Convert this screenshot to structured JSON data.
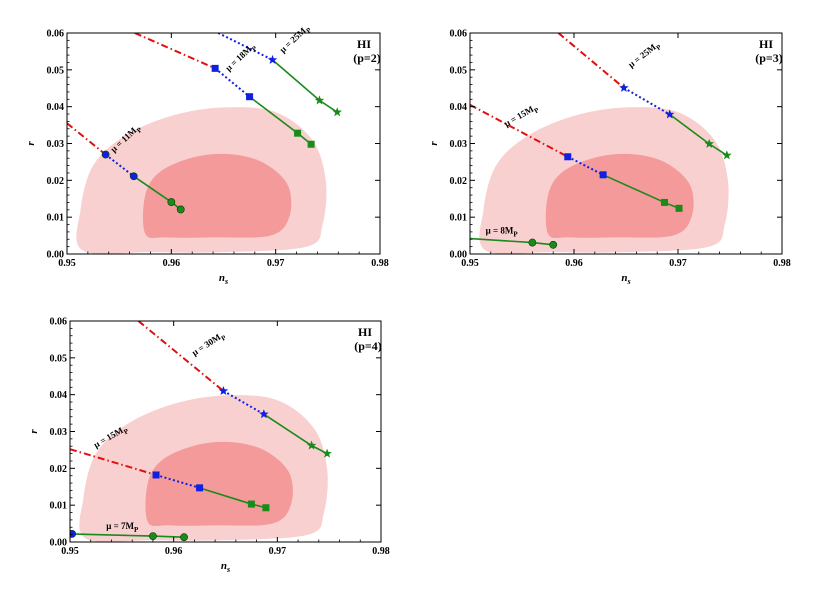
{
  "chart_data": [
    {
      "type": "line",
      "title": "HI",
      "subtitle": "(p=2)",
      "xlabel": "n_s",
      "ylabel": "r",
      "xlim": [
        0.95,
        0.98
      ],
      "ylim": [
        0,
        0.06
      ],
      "xticks": [
        "0.95",
        "0.96",
        "0.97",
        "0.98"
      ],
      "yticks": [
        "0.00",
        "0.01",
        "0.02",
        "0.03",
        "0.04",
        "0.05",
        "0.06"
      ],
      "contours": [
        {
          "level": "outer",
          "color": "#f9d0d0",
          "points": [
            [
              0.9515,
              0.001
            ],
            [
              0.9513,
              0.012
            ],
            [
              0.9525,
              0.024
            ],
            [
              0.9555,
              0.032
            ],
            [
              0.96,
              0.0375
            ],
            [
              0.965,
              0.0398
            ],
            [
              0.97,
              0.0385
            ],
            [
              0.9735,
              0.031
            ],
            [
              0.9748,
              0.02
            ],
            [
              0.9745,
              0.008
            ],
            [
              0.973,
              0.002
            ],
            [
              0.965,
              0.0005
            ],
            [
              0.958,
              0.0005
            ]
          ]
        },
        {
          "level": "inner",
          "color": "#f49a9a",
          "points": [
            [
              0.9575,
              0.0055
            ],
            [
              0.9575,
              0.016
            ],
            [
              0.959,
              0.0225
            ],
            [
              0.9625,
              0.0265
            ],
            [
              0.966,
              0.027
            ],
            [
              0.969,
              0.0245
            ],
            [
              0.9712,
              0.0185
            ],
            [
              0.9713,
              0.01
            ],
            [
              0.9695,
              0.005
            ],
            [
              0.964,
              0.0045
            ],
            [
              0.9595,
              0.0045
            ]
          ]
        }
      ],
      "series": [
        {
          "style": "dashdot",
          "color": "#e01010",
          "points": [
            [
              0.95,
              0.0355
            ],
            [
              0.9537,
              0.027
            ]
          ]
        },
        {
          "style": "dotted",
          "color": "#1020e0",
          "points": [
            [
              0.9537,
              0.027
            ],
            [
              0.9564,
              0.0211
            ]
          ]
        },
        {
          "style": "solid",
          "color": "#1a8a1a",
          "points": [
            [
              0.9564,
              0.0211
            ],
            [
              0.96,
              0.0141
            ],
            [
              0.9609,
              0.0121
            ]
          ]
        },
        {
          "style": "dashdot",
          "color": "#e01010",
          "points": [
            [
              0.9565,
              0.06
            ],
            [
              0.9642,
              0.0504
            ]
          ]
        },
        {
          "style": "dotted",
          "color": "#1020e0",
          "points": [
            [
              0.9642,
              0.0504
            ],
            [
              0.9675,
              0.0427
            ]
          ]
        },
        {
          "style": "solid",
          "color": "#1a8a1a",
          "points": [
            [
              0.9675,
              0.0427
            ],
            [
              0.9721,
              0.0328
            ],
            [
              0.9734,
              0.0298
            ]
          ]
        },
        {
          "style": "dotted",
          "color": "#1020e0",
          "points": [
            [
              0.9645,
              0.06
            ],
            [
              0.9697,
              0.0527
            ]
          ]
        },
        {
          "style": "solid",
          "color": "#1a8a1a",
          "points": [
            [
              0.9697,
              0.0527
            ],
            [
              0.9742,
              0.0417
            ],
            [
              0.9759,
              0.0385
            ]
          ]
        }
      ],
      "markers": [
        {
          "shape": "circle",
          "color": "#1020e0",
          "x": 0.9537,
          "y": 0.027
        },
        {
          "shape": "circle",
          "color": "#1020e0",
          "x": 0.9564,
          "y": 0.0211
        },
        {
          "shape": "circle",
          "color": "#1a8a1a",
          "x": 0.96,
          "y": 0.0141
        },
        {
          "shape": "circle",
          "color": "#1a8a1a",
          "x": 0.9609,
          "y": 0.0121
        },
        {
          "shape": "square",
          "color": "#1020e0",
          "x": 0.9642,
          "y": 0.0504
        },
        {
          "shape": "square",
          "color": "#1020e0",
          "x": 0.9675,
          "y": 0.0427
        },
        {
          "shape": "square",
          "color": "#1a8a1a",
          "x": 0.9721,
          "y": 0.0328
        },
        {
          "shape": "square",
          "color": "#1a8a1a",
          "x": 0.9734,
          "y": 0.0298
        },
        {
          "shape": "star",
          "color": "#1020e0",
          "x": 0.9697,
          "y": 0.0527
        },
        {
          "shape": "star",
          "color": "#1a8a1a",
          "x": 0.9742,
          "y": 0.0417
        },
        {
          "shape": "star",
          "color": "#1a8a1a",
          "x": 0.9759,
          "y": 0.0385
        }
      ],
      "annotations": [
        {
          "text": "μ = 11M",
          "sub": "P",
          "x": 0.9545,
          "y": 0.0275,
          "rotate": -43
        },
        {
          "text": "μ = 18M",
          "sub": "P",
          "x": 0.9655,
          "y": 0.0495,
          "rotate": -43
        },
        {
          "text": "μ = 25M",
          "sub": "P",
          "x": 0.9707,
          "y": 0.0545,
          "rotate": -43
        }
      ]
    },
    {
      "type": "line",
      "title": "HI",
      "subtitle": "(p=3)",
      "xlabel": "n_s",
      "ylabel": "r",
      "xlim": [
        0.95,
        0.98
      ],
      "ylim": [
        0,
        0.06
      ],
      "xticks": [
        "0.95",
        "0.96",
        "0.97",
        "0.98"
      ],
      "yticks": [
        "0.00",
        "0.01",
        "0.02",
        "0.03",
        "0.04",
        "0.05",
        "0.06"
      ],
      "contours": [
        {
          "level": "outer",
          "color": "#f9d0d0",
          "points": [
            [
              0.9515,
              0.001
            ],
            [
              0.9513,
              0.012
            ],
            [
              0.9525,
              0.024
            ],
            [
              0.9555,
              0.032
            ],
            [
              0.96,
              0.0375
            ],
            [
              0.965,
              0.0398
            ],
            [
              0.97,
              0.0385
            ],
            [
              0.9735,
              0.031
            ],
            [
              0.9748,
              0.02
            ],
            [
              0.9745,
              0.008
            ],
            [
              0.973,
              0.002
            ],
            [
              0.965,
              0.0005
            ],
            [
              0.958,
              0.0005
            ]
          ]
        },
        {
          "level": "inner",
          "color": "#f49a9a",
          "points": [
            [
              0.9575,
              0.0055
            ],
            [
              0.9575,
              0.016
            ],
            [
              0.959,
              0.0225
            ],
            [
              0.9625,
              0.0265
            ],
            [
              0.966,
              0.027
            ],
            [
              0.969,
              0.0245
            ],
            [
              0.9712,
              0.0185
            ],
            [
              0.9713,
              0.01
            ],
            [
              0.9695,
              0.005
            ],
            [
              0.964,
              0.0045
            ],
            [
              0.9595,
              0.0045
            ]
          ]
        }
      ],
      "series": [
        {
          "style": "dashdot",
          "color": "#e01010",
          "points": [
            [
              0.95,
              0.0405
            ],
            [
              0.9594,
              0.0264
            ]
          ]
        },
        {
          "style": "dotted",
          "color": "#1020e0",
          "points": [
            [
              0.9594,
              0.0264
            ],
            [
              0.9628,
              0.0215
            ]
          ]
        },
        {
          "style": "solid",
          "color": "#1a8a1a",
          "points": [
            [
              0.9628,
              0.0215
            ],
            [
              0.9687,
              0.014
            ],
            [
              0.9701,
              0.0124
            ]
          ]
        },
        {
          "style": "dashdot",
          "color": "#e01010",
          "points": [
            [
              0.9585,
              0.06
            ],
            [
              0.9648,
              0.0451
            ]
          ]
        },
        {
          "style": "dotted",
          "color": "#1020e0",
          "points": [
            [
              0.9648,
              0.0451
            ],
            [
              0.9692,
              0.0379
            ]
          ]
        },
        {
          "style": "solid",
          "color": "#1a8a1a",
          "points": [
            [
              0.9692,
              0.0379
            ],
            [
              0.973,
              0.0299
            ],
            [
              0.9747,
              0.0268
            ]
          ]
        },
        {
          "style": "solid",
          "color": "#1a8a1a",
          "points": [
            [
              0.95,
              0.0042
            ],
            [
              0.956,
              0.0031
            ],
            [
              0.958,
              0.0025
            ]
          ]
        }
      ],
      "markers": [
        {
          "shape": "square",
          "color": "#1020e0",
          "x": 0.9594,
          "y": 0.0264
        },
        {
          "shape": "square",
          "color": "#1020e0",
          "x": 0.9628,
          "y": 0.0215
        },
        {
          "shape": "square",
          "color": "#1a8a1a",
          "x": 0.9687,
          "y": 0.014
        },
        {
          "shape": "square",
          "color": "#1a8a1a",
          "x": 0.9701,
          "y": 0.0124
        },
        {
          "shape": "star",
          "color": "#1020e0",
          "x": 0.9648,
          "y": 0.0451
        },
        {
          "shape": "star",
          "color": "#1020e0",
          "x": 0.9692,
          "y": 0.0379
        },
        {
          "shape": "star",
          "color": "#1a8a1a",
          "x": 0.973,
          "y": 0.0299
        },
        {
          "shape": "star",
          "color": "#1a8a1a",
          "x": 0.9747,
          "y": 0.0268
        },
        {
          "shape": "circle",
          "color": "#1a8a1a",
          "x": 0.956,
          "y": 0.0031
        },
        {
          "shape": "circle",
          "color": "#1a8a1a",
          "x": 0.958,
          "y": 0.0025
        }
      ],
      "annotations": [
        {
          "text": "μ = 25M",
          "sub": "P",
          "x": 0.9655,
          "y": 0.0505,
          "rotate": -38
        },
        {
          "text": "μ = 15M",
          "sub": "P",
          "x": 0.9535,
          "y": 0.0345,
          "rotate": -30
        },
        {
          "text": "μ = 8M",
          "sub": "P",
          "x": 0.9515,
          "y": 0.0055,
          "rotate": 0
        }
      ]
    },
    {
      "type": "line",
      "title": "HI",
      "subtitle": "(p=4)",
      "xlabel": "n_s",
      "ylabel": "r",
      "xlim": [
        0.95,
        0.98
      ],
      "ylim": [
        0,
        0.06
      ],
      "xticks": [
        "0.95",
        "0.96",
        "0.97",
        "0.98"
      ],
      "yticks": [
        "0.00",
        "0.01",
        "0.02",
        "0.03",
        "0.04",
        "0.05",
        "0.06"
      ],
      "contours": [
        {
          "level": "outer",
          "color": "#f9d0d0",
          "points": [
            [
              0.9515,
              0.001
            ],
            [
              0.9513,
              0.012
            ],
            [
              0.9525,
              0.024
            ],
            [
              0.9555,
              0.032
            ],
            [
              0.96,
              0.0375
            ],
            [
              0.965,
              0.0398
            ],
            [
              0.97,
              0.0385
            ],
            [
              0.9735,
              0.031
            ],
            [
              0.9748,
              0.02
            ],
            [
              0.9745,
              0.008
            ],
            [
              0.973,
              0.002
            ],
            [
              0.965,
              0.0005
            ],
            [
              0.958,
              0.0005
            ]
          ]
        },
        {
          "level": "inner",
          "color": "#f49a9a",
          "points": [
            [
              0.9575,
              0.0055
            ],
            [
              0.9575,
              0.016
            ],
            [
              0.959,
              0.0225
            ],
            [
              0.9625,
              0.0265
            ],
            [
              0.966,
              0.027
            ],
            [
              0.969,
              0.0245
            ],
            [
              0.9712,
              0.0185
            ],
            [
              0.9713,
              0.01
            ],
            [
              0.9695,
              0.005
            ],
            [
              0.964,
              0.0045
            ],
            [
              0.9595,
              0.0045
            ]
          ]
        }
      ],
      "series": [
        {
          "style": "dashdot",
          "color": "#e01010",
          "points": [
            [
              0.9566,
              0.06
            ],
            [
              0.9648,
              0.041
            ]
          ]
        },
        {
          "style": "dotted",
          "color": "#1020e0",
          "points": [
            [
              0.9648,
              0.041
            ],
            [
              0.9687,
              0.0347
            ]
          ]
        },
        {
          "style": "solid",
          "color": "#1a8a1a",
          "points": [
            [
              0.9687,
              0.0347
            ],
            [
              0.9733,
              0.0262
            ],
            [
              0.9748,
              0.024
            ]
          ]
        },
        {
          "style": "dashdot",
          "color": "#e01010",
          "points": [
            [
              0.95,
              0.0252
            ],
            [
              0.9583,
              0.0182
            ]
          ]
        },
        {
          "style": "dotted",
          "color": "#1020e0",
          "points": [
            [
              0.9583,
              0.0182
            ],
            [
              0.9625,
              0.0147
            ]
          ]
        },
        {
          "style": "solid",
          "color": "#1a8a1a",
          "points": [
            [
              0.9625,
              0.0147
            ],
            [
              0.9675,
              0.0103
            ],
            [
              0.9689,
              0.0093
            ]
          ]
        },
        {
          "style": "solid",
          "color": "#1a8a1a",
          "points": [
            [
              0.95,
              0.0022
            ],
            [
              0.958,
              0.0016
            ],
            [
              0.961,
              0.0013
            ]
          ]
        }
      ],
      "markers": [
        {
          "shape": "star",
          "color": "#1020e0",
          "x": 0.9648,
          "y": 0.041
        },
        {
          "shape": "star",
          "color": "#1020e0",
          "x": 0.9687,
          "y": 0.0347
        },
        {
          "shape": "star",
          "color": "#1a8a1a",
          "x": 0.9733,
          "y": 0.0262
        },
        {
          "shape": "star",
          "color": "#1a8a1a",
          "x": 0.9748,
          "y": 0.024
        },
        {
          "shape": "square",
          "color": "#1020e0",
          "x": 0.9583,
          "y": 0.0182
        },
        {
          "shape": "square",
          "color": "#1020e0",
          "x": 0.9625,
          "y": 0.0147
        },
        {
          "shape": "square",
          "color": "#1a8a1a",
          "x": 0.9675,
          "y": 0.0103
        },
        {
          "shape": "square",
          "color": "#1a8a1a",
          "x": 0.9689,
          "y": 0.0093
        },
        {
          "shape": "circle",
          "color": "#1020e0",
          "x": 0.9502,
          "y": 0.0022
        },
        {
          "shape": "circle",
          "color": "#1a8a1a",
          "x": 0.958,
          "y": 0.0016
        },
        {
          "shape": "circle",
          "color": "#1a8a1a",
          "x": 0.961,
          "y": 0.0013
        }
      ],
      "annotations": [
        {
          "text": "μ = 30M",
          "sub": "P",
          "x": 0.962,
          "y": 0.0505,
          "rotate": -33
        },
        {
          "text": "μ = 15M",
          "sub": "P",
          "x": 0.9525,
          "y": 0.0255,
          "rotate": -30
        },
        {
          "text": "μ = 7M",
          "sub": "P",
          "x": 0.9535,
          "y": 0.0035,
          "rotate": 0
        }
      ]
    }
  ]
}
